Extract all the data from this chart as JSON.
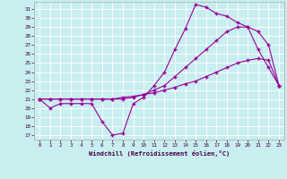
{
  "xlabel": "Windchill (Refroidissement éolien,°C)",
  "bg_color": "#c8eef0",
  "grid_color": "#ffffff",
  "line_color": "#990099",
  "xlim": [
    -0.5,
    23.5
  ],
  "ylim": [
    16.5,
    31.8
  ],
  "yticks": [
    17,
    18,
    19,
    20,
    21,
    22,
    23,
    24,
    25,
    26,
    27,
    28,
    29,
    30,
    31
  ],
  "xticks": [
    0,
    1,
    2,
    3,
    4,
    5,
    6,
    7,
    8,
    9,
    10,
    11,
    12,
    13,
    14,
    15,
    16,
    17,
    18,
    19,
    20,
    21,
    22,
    23
  ],
  "lines": [
    [
      21.0,
      20.0,
      20.5,
      20.5,
      20.5,
      20.5,
      18.5,
      17.0,
      17.2,
      20.5,
      21.2,
      22.5,
      24.0,
      26.5,
      28.8,
      31.5,
      31.2,
      30.5,
      30.2,
      29.5,
      29.0,
      26.5,
      24.5,
      22.5
    ],
    [
      21.0,
      21.0,
      21.0,
      21.0,
      21.0,
      21.0,
      21.0,
      21.0,
      21.0,
      21.2,
      21.5,
      22.0,
      22.5,
      23.5,
      24.5,
      25.5,
      26.5,
      27.5,
      28.5,
      29.0,
      29.0,
      28.5,
      27.0,
      22.5
    ],
    [
      21.0,
      21.0,
      21.0,
      21.0,
      21.0,
      21.0,
      21.0,
      21.0,
      21.2,
      21.3,
      21.5,
      21.7,
      22.0,
      22.3,
      22.7,
      23.0,
      23.5,
      24.0,
      24.5,
      25.0,
      25.3,
      25.5,
      25.3,
      22.5
    ]
  ]
}
